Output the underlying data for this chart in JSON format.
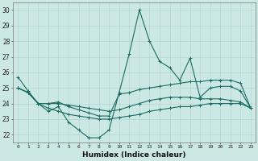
{
  "xlabel": "Humidex (Indice chaleur)",
  "ylabel": "",
  "xlim": [
    -0.5,
    23.5
  ],
  "ylim": [
    21.5,
    30.5
  ],
  "yticks": [
    22,
    23,
    24,
    25,
    26,
    27,
    28,
    29,
    30
  ],
  "xticks": [
    0,
    1,
    2,
    3,
    4,
    5,
    6,
    7,
    8,
    9,
    10,
    11,
    12,
    13,
    14,
    15,
    16,
    17,
    18,
    19,
    20,
    21,
    22,
    23
  ],
  "background_color": "#cce8e4",
  "grid_color": "#b0d0cc",
  "line_color": "#1a6b63",
  "line_width": 0.8,
  "marker": "+",
  "markersize": 3,
  "markeredgewidth": 0.7,
  "series": [
    [
      25.7,
      24.8,
      24.0,
      23.5,
      23.8,
      22.8,
      22.3,
      21.8,
      21.8,
      22.3,
      24.7,
      27.2,
      30.0,
      28.0,
      26.7,
      26.3,
      25.5,
      26.9,
      24.4,
      25.0,
      25.1,
      25.1,
      24.8,
      23.7
    ],
    [
      25.0,
      24.7,
      24.0,
      24.0,
      24.1,
      23.8,
      23.6,
      23.4,
      23.2,
      23.2,
      24.6,
      24.7,
      24.9,
      25.0,
      25.1,
      25.2,
      25.3,
      25.4,
      25.4,
      25.5,
      25.5,
      25.5,
      25.3,
      23.7
    ],
    [
      25.0,
      24.7,
      24.0,
      23.7,
      23.5,
      23.3,
      23.2,
      23.1,
      23.0,
      23.0,
      23.1,
      23.2,
      23.3,
      23.5,
      23.6,
      23.7,
      23.8,
      23.8,
      23.9,
      24.0,
      24.0,
      24.0,
      24.0,
      23.7
    ],
    [
      25.0,
      24.7,
      24.0,
      24.0,
      24.0,
      23.9,
      23.8,
      23.7,
      23.6,
      23.5,
      23.6,
      23.8,
      24.0,
      24.2,
      24.3,
      24.4,
      24.4,
      24.4,
      24.3,
      24.3,
      24.3,
      24.2,
      24.1,
      23.7
    ]
  ]
}
